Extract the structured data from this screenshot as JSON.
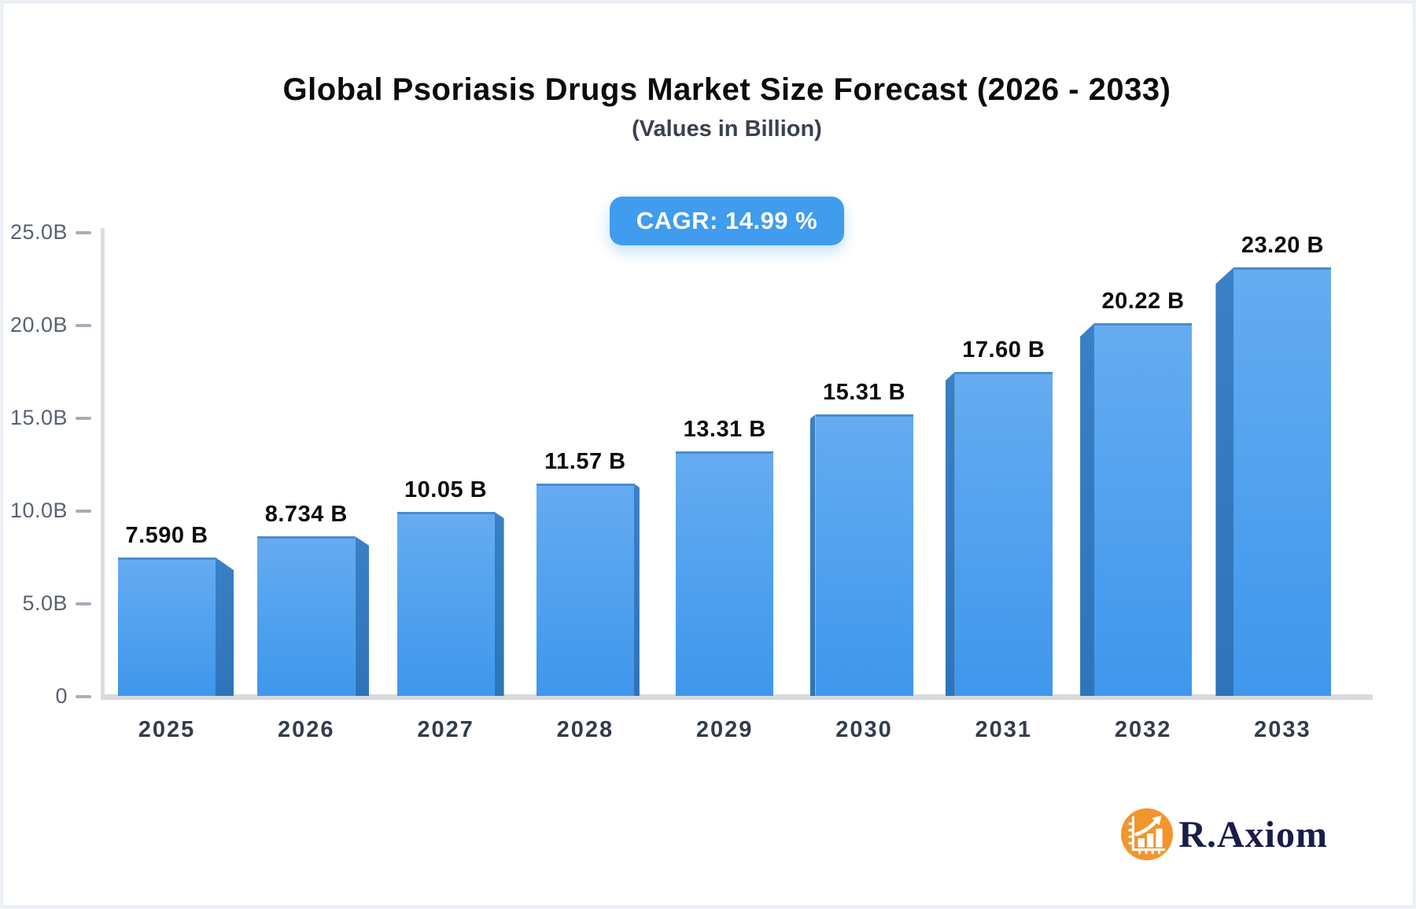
{
  "header": {
    "title": "Global Psoriasis Drugs Market Size Forecast (2026 - 2033)",
    "subtitle": "(Values in Billion)"
  },
  "badge": {
    "label": "CAGR: 14.99 %"
  },
  "chart_data": {
    "type": "bar",
    "title": "Global Psoriasis Drugs Market Size Forecast (2026 - 2033)",
    "subtitle": "(Values in Billion)",
    "categories": [
      "2025",
      "2026",
      "2027",
      "2028",
      "2029",
      "2030",
      "2031",
      "2032",
      "2033"
    ],
    "values": [
      7.59,
      8.734,
      10.05,
      11.57,
      13.31,
      15.31,
      17.6,
      20.22,
      23.2
    ],
    "bar_labels": [
      "7.590 B",
      "8.734 B",
      "10.05 B",
      "11.57 B",
      "13.31 B",
      "15.31 B",
      "17.60 B",
      "20.22 B",
      "23.20 B"
    ],
    "y_ticks": [
      {
        "label": "25.0B",
        "value": 25
      },
      {
        "label": "20.0B",
        "value": 20
      },
      {
        "label": "15.0B",
        "value": 15
      },
      {
        "label": "10.0B",
        "value": 10
      },
      {
        "label": "5.0B",
        "value": 5
      },
      {
        "label": "0",
        "value": 0
      }
    ],
    "ylim": [
      0,
      25
    ],
    "xlabel": "",
    "ylabel": "",
    "grid": false,
    "legend": "none",
    "cagr_annotation": "CAGR: 14.99 %"
  },
  "colors": {
    "badge_bg": "#3f9cee",
    "bar_face_top": "#66acf1",
    "bar_face_bottom": "#3f97ec",
    "bar_side": "#2e74ba",
    "axis_line": "#dcdfe4",
    "value_label": "#0b0c0e"
  },
  "branding": {
    "name": "R.Axiom",
    "icon": "bar-chart-growth-icon",
    "icon_bg": "#f2952c"
  }
}
